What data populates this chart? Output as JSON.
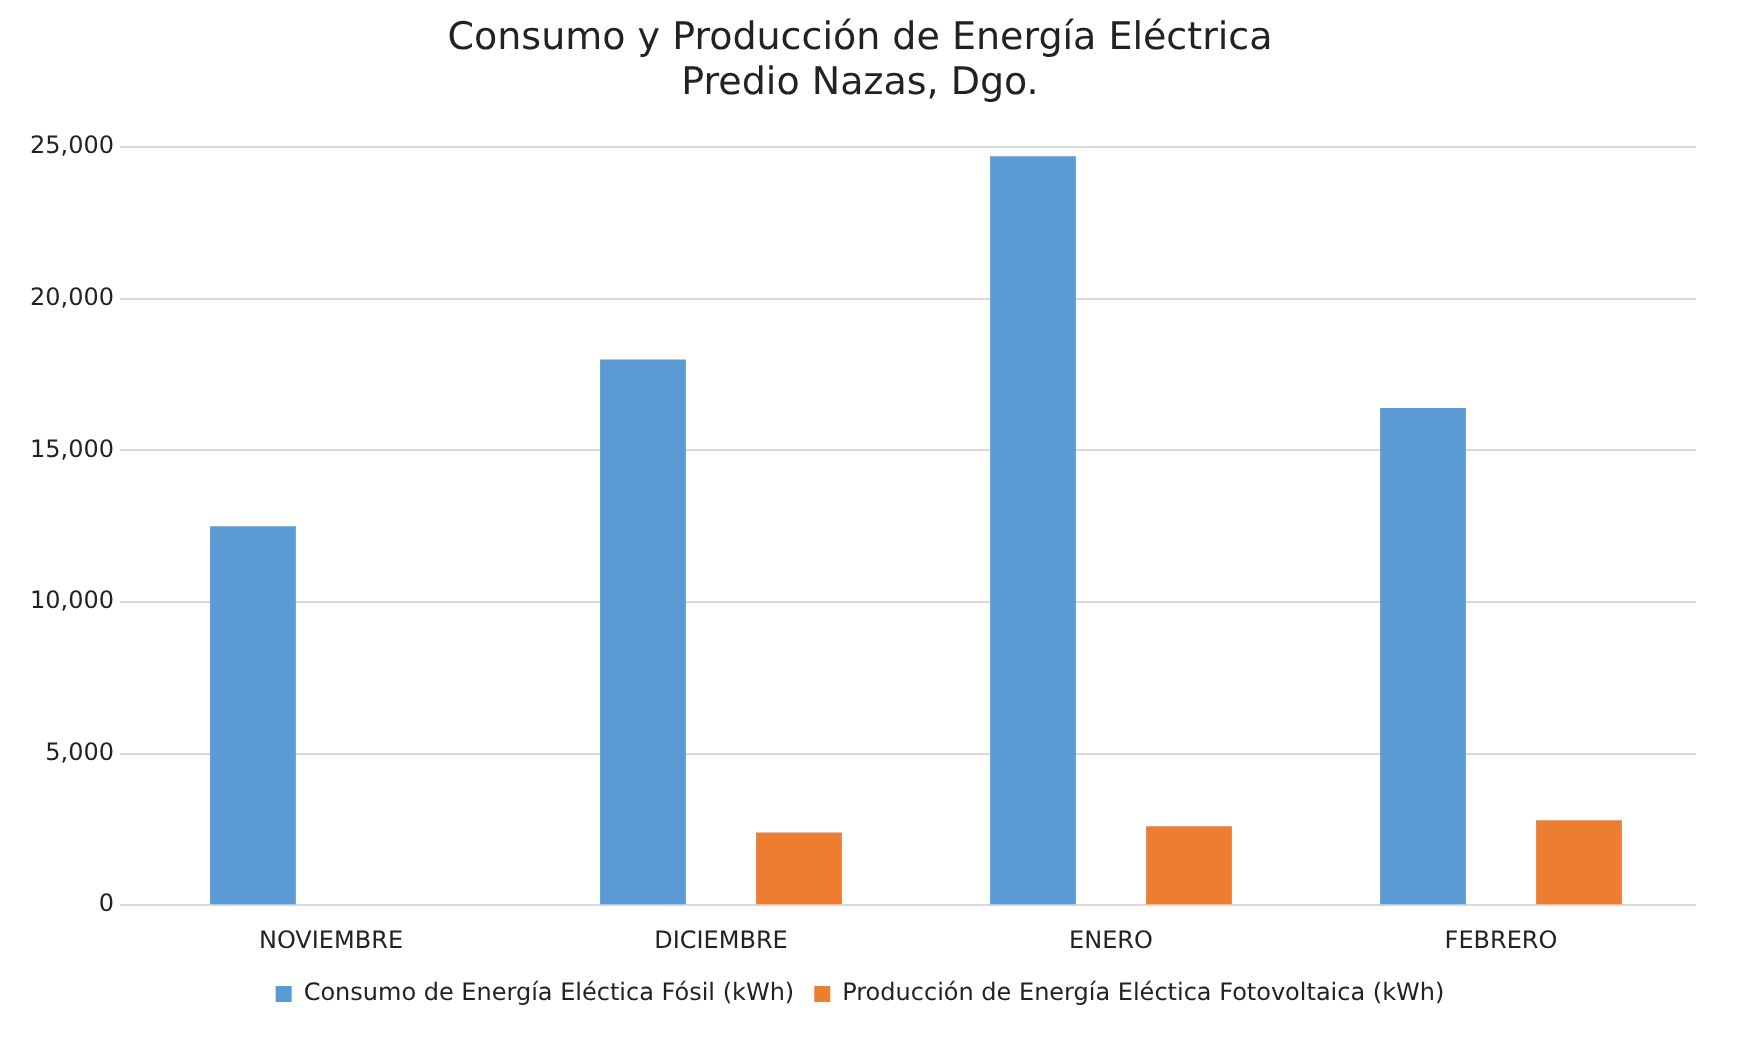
{
  "chart_data": {
    "type": "bar",
    "title": "Consumo y Producción de Energía Eléctrica\nPredio Nazas, Dgo.",
    "categories": [
      "NOVIEMBRE",
      "DICIEMBRE",
      "ENERO",
      "FEBRERO"
    ],
    "series": [
      {
        "name": "Consumo de Energía Eléctica Fósil (kWh)",
        "color": "#5b9bd5",
        "values": [
          12500,
          18000,
          24700,
          16400
        ]
      },
      {
        "name": "Producción de Energía Eléctica Fotovoltaica (kWh)",
        "color": "#ed7d31",
        "values": [
          null,
          2400,
          2600,
          2800
        ]
      }
    ],
    "ylim": [
      0,
      25000
    ],
    "yticks": [
      {
        "value": 0,
        "label": "0"
      },
      {
        "value": 5000,
        "label": "5,000"
      },
      {
        "value": 10000,
        "label": "10,000"
      },
      {
        "value": 15000,
        "label": "15,000"
      },
      {
        "value": 20000,
        "label": "20,000"
      },
      {
        "value": 25000,
        "label": "25,000"
      }
    ],
    "grid": "y",
    "legend": "bottom"
  }
}
